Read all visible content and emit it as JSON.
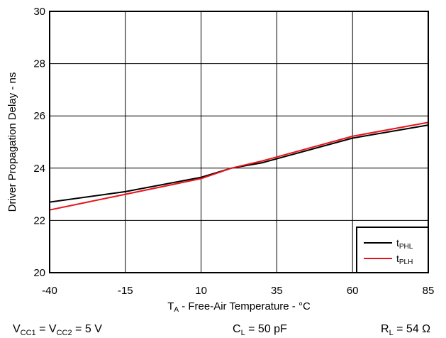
{
  "chart_data": {
    "type": "line",
    "title": "",
    "xlabel": {
      "main": "T",
      "sub": "A",
      "rest": " - Free-Air Temperature - °C"
    },
    "ylabel": "Driver Propagation Delay - ns",
    "xlim": [
      -40,
      85
    ],
    "ylim": [
      20,
      30
    ],
    "x_ticks": [
      -40,
      -15,
      10,
      35,
      60,
      85
    ],
    "y_ticks": [
      20,
      22,
      24,
      26,
      28,
      30
    ],
    "grid": true,
    "legend_position": "bottom-right",
    "series": [
      {
        "name": {
          "main": "t",
          "sub": "PHL"
        },
        "color": "#000000",
        "x": [
          -40,
          -15,
          10,
          20,
          30,
          60,
          85
        ],
        "y": [
          22.7,
          23.1,
          23.65,
          24.0,
          24.2,
          25.15,
          25.65
        ]
      },
      {
        "name": {
          "main": "t",
          "sub": "PLH"
        },
        "color": "#e8141b",
        "x": [
          -40,
          -15,
          10,
          20,
          30,
          60,
          85
        ],
        "y": [
          22.4,
          23.0,
          23.6,
          24.0,
          24.27,
          25.22,
          25.75
        ]
      }
    ],
    "conditions": [
      {
        "parts": [
          {
            "t": "V"
          },
          {
            "t": "CC1",
            "sub": true
          },
          {
            "t": " = V"
          },
          {
            "t": "CC2",
            "sub": true
          },
          {
            "t": " = 5 V"
          }
        ]
      },
      {
        "parts": [
          {
            "t": "C"
          },
          {
            "t": "L",
            "sub": true
          },
          {
            "t": " = 50 pF"
          }
        ]
      },
      {
        "parts": [
          {
            "t": "R"
          },
          {
            "t": "L",
            "sub": true
          },
          {
            "t": " = 54 Ω"
          }
        ]
      }
    ]
  }
}
